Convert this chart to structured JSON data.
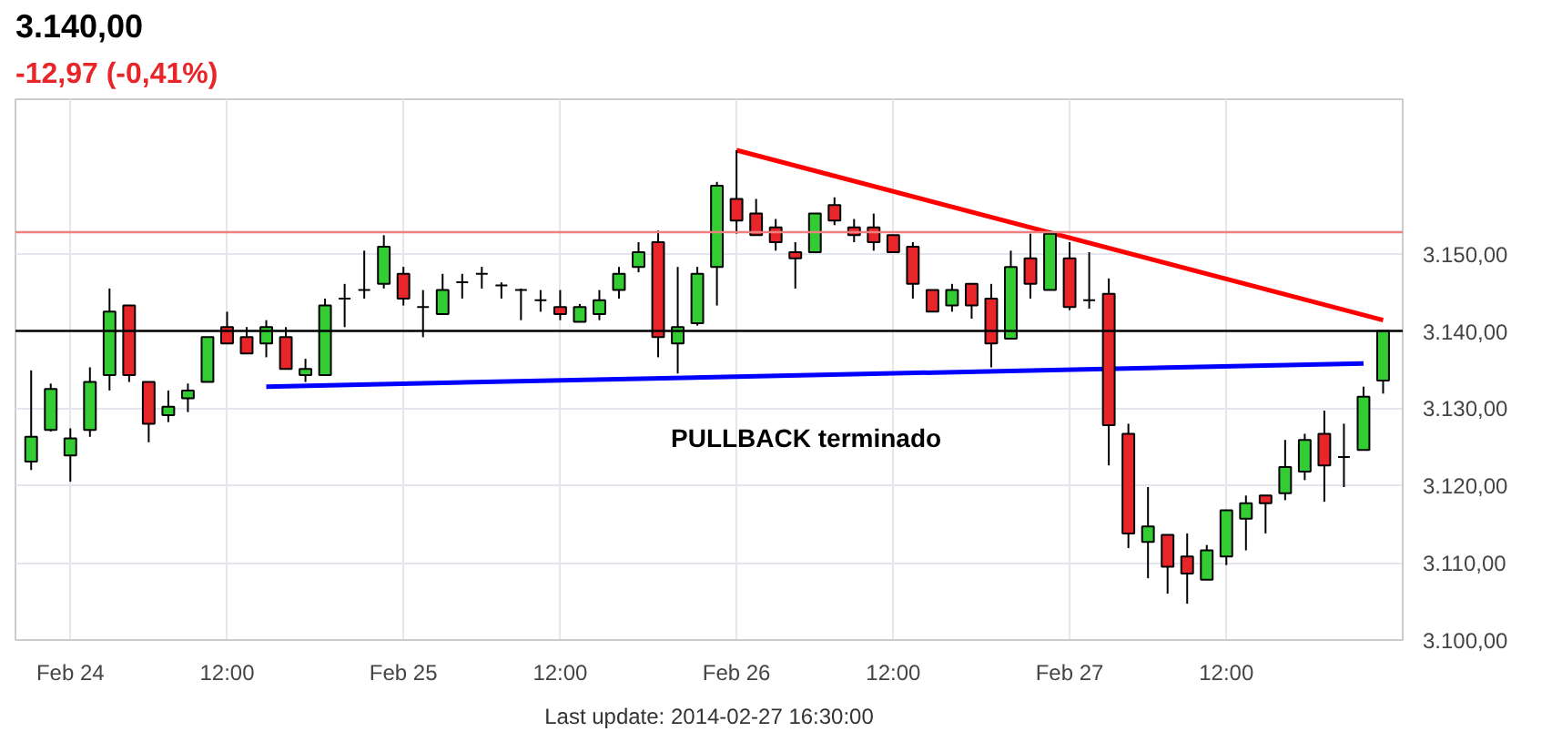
{
  "chart_data": {
    "type": "candlestick",
    "title": "3.140,00",
    "subtitle": "-12,97 (-0,41%)",
    "annotations": [
      "PULLBACK terminado",
      "Last update: 2014-02-27 16:30:00"
    ],
    "categories": [
      null,
      null,
      "Feb 24",
      null,
      null,
      null,
      null,
      null,
      null,
      null,
      "12:00",
      null,
      null,
      null,
      null,
      null,
      null,
      null,
      null,
      "Feb 25",
      null,
      null,
      null,
      null,
      null,
      null,
      null,
      "12:00",
      null,
      null,
      null,
      null,
      null,
      null,
      null,
      null,
      "Feb 26",
      null,
      null,
      null,
      null,
      null,
      null,
      null,
      "12:00",
      null,
      null,
      null,
      null,
      null,
      null,
      null,
      null,
      "Feb 27",
      null,
      null,
      null,
      null,
      null,
      null,
      null,
      "12:00",
      null,
      null,
      null,
      null,
      null,
      null,
      null,
      null
    ],
    "ohlc": [
      [
        3123.1,
        3134.9,
        3122.0,
        3126.3
      ],
      [
        3127.2,
        3133.2,
        3127.0,
        3132.5
      ],
      [
        3123.9,
        3127.4,
        3120.5,
        3126.1
      ],
      [
        3127.2,
        3135.3,
        3126.3,
        3133.4
      ],
      [
        3134.3,
        3145.5,
        3132.3,
        3142.5
      ],
      [
        3143.3,
        3143.3,
        3133.4,
        3134.3
      ],
      [
        3133.4,
        3133.4,
        3125.6,
        3128.0
      ],
      [
        3129.1,
        3132.3,
        3128.2,
        3130.2
      ],
      [
        3131.3,
        3133.2,
        3129.5,
        3132.3
      ],
      [
        3133.4,
        3139.2,
        3133.4,
        3139.2
      ],
      [
        3140.5,
        3142.5,
        3138.4,
        3138.4
      ],
      [
        3139.2,
        3140.5,
        3137.1,
        3137.1
      ],
      [
        3138.4,
        3141.4,
        3136.6,
        3140.5
      ],
      [
        3139.2,
        3140.5,
        3135.1,
        3135.1
      ],
      [
        3134.3,
        3136.4,
        3133.4,
        3135.1
      ],
      [
        3134.3,
        3144.2,
        3134.3,
        3143.3
      ],
      [
        3144.2,
        3146.1,
        3140.5,
        3144.2
      ],
      [
        3145.3,
        3150.4,
        3144.2,
        3145.3
      ],
      [
        3146.1,
        3152.4,
        3145.5,
        3150.9
      ],
      [
        3147.4,
        3148.3,
        3143.3,
        3144.2
      ],
      [
        3143.1,
        3145.3,
        3139.2,
        3143.1
      ],
      [
        3142.2,
        3147.4,
        3142.2,
        3145.3
      ],
      [
        3146.3,
        3147.4,
        3144.2,
        3146.3
      ],
      [
        3147.4,
        3148.3,
        3145.5,
        3147.4
      ],
      [
        3145.9,
        3146.3,
        3144.2,
        3145.9
      ],
      [
        3145.3,
        3145.5,
        3141.4,
        3145.3
      ],
      [
        3144.0,
        3145.3,
        3142.5,
        3144.0
      ],
      [
        3143.1,
        3145.3,
        3141.4,
        3142.2
      ],
      [
        3141.2,
        3143.5,
        3141.2,
        3143.1
      ],
      [
        3142.2,
        3145.3,
        3141.4,
        3144.0
      ],
      [
        3145.3,
        3148.3,
        3144.2,
        3147.4
      ],
      [
        3148.3,
        3151.5,
        3147.6,
        3150.2
      ],
      [
        3151.5,
        3153.0,
        3136.6,
        3139.2
      ],
      [
        3138.4,
        3148.3,
        3134.5,
        3140.5
      ],
      [
        3141.0,
        3148.3,
        3140.7,
        3147.4
      ],
      [
        3148.3,
        3159.3,
        3143.3,
        3158.8
      ],
      [
        3157.1,
        3163.4,
        3152.6,
        3154.3
      ],
      [
        3155.2,
        3157.1,
        3152.4,
        3152.4
      ],
      [
        3153.4,
        3154.5,
        3150.4,
        3151.5
      ],
      [
        3150.2,
        3151.5,
        3145.5,
        3149.4
      ],
      [
        3150.2,
        3155.2,
        3150.2,
        3155.2
      ],
      [
        3156.3,
        3157.3,
        3153.7,
        3154.3
      ],
      [
        3153.4,
        3154.5,
        3151.5,
        3152.4
      ],
      [
        3153.4,
        3155.2,
        3150.4,
        3151.5
      ],
      [
        3152.4,
        3152.4,
        3150.2,
        3150.2
      ],
      [
        3150.9,
        3151.5,
        3144.2,
        3146.1
      ],
      [
        3145.3,
        3145.3,
        3142.5,
        3142.5
      ],
      [
        3143.3,
        3146.1,
        3142.5,
        3145.3
      ],
      [
        3146.1,
        3146.1,
        3141.6,
        3143.3
      ],
      [
        3144.2,
        3146.1,
        3135.3,
        3138.4
      ],
      [
        3139.0,
        3150.4,
        3139.0,
        3148.3
      ],
      [
        3149.4,
        3152.6,
        3144.2,
        3146.1
      ],
      [
        3145.3,
        3153.0,
        3145.3,
        3152.6
      ],
      [
        3149.4,
        3151.5,
        3142.7,
        3143.1
      ],
      [
        3144.0,
        3150.2,
        3142.9,
        3144.0
      ],
      [
        3144.8,
        3146.8,
        3122.6,
        3127.8
      ],
      [
        3126.7,
        3128.0,
        3111.9,
        3113.8
      ],
      [
        3112.7,
        3119.8,
        3108.0,
        3114.7
      ],
      [
        3113.6,
        3113.6,
        3106.0,
        3109.5
      ],
      [
        3110.8,
        3113.8,
        3104.7,
        3108.6
      ],
      [
        3107.8,
        3112.3,
        3107.8,
        3111.6
      ],
      [
        3110.8,
        3116.8,
        3109.7,
        3116.8
      ],
      [
        3115.7,
        3118.7,
        3111.6,
        3117.7
      ],
      [
        3118.7,
        3118.7,
        3113.8,
        3117.7
      ],
      [
        3119.0,
        3125.9,
        3118.1,
        3122.4
      ],
      [
        3121.8,
        3126.7,
        3120.7,
        3125.9
      ],
      [
        3126.7,
        3129.7,
        3117.9,
        3122.6
      ],
      [
        3123.7,
        3128.0,
        3119.8,
        3123.7
      ],
      [
        3124.6,
        3132.8,
        3124.6,
        3131.5
      ],
      [
        3133.6,
        3140.0,
        3131.9,
        3140.0
      ]
    ],
    "colors": [
      "#33cc33",
      "#33cc33",
      "#33cc33",
      "#33cc33",
      "#33cc33",
      "#e8262a",
      "#e8262a",
      "#33cc33",
      "#33cc33",
      "#33cc33",
      "#e8262a",
      "#e8262a",
      "#33cc33",
      "#e8262a",
      "#33cc33",
      "#33cc33",
      "#000000",
      "#000000",
      "#33cc33",
      "#e8262a",
      "#000000",
      "#33cc33",
      "#000000",
      "#000000",
      "#000000",
      "#000000",
      "#000000",
      "#e8262a",
      "#33cc33",
      "#33cc33",
      "#33cc33",
      "#33cc33",
      "#e8262a",
      "#33cc33",
      "#33cc33",
      "#33cc33",
      "#e8262a",
      "#e8262a",
      "#e8262a",
      "#e8262a",
      "#33cc33",
      "#e8262a",
      "#e8262a",
      "#e8262a",
      "#e8262a",
      "#e8262a",
      "#e8262a",
      "#33cc33",
      "#e8262a",
      "#e8262a",
      "#33cc33",
      "#e8262a",
      "#33cc33",
      "#e8262a",
      "#000000",
      "#e8262a",
      "#e8262a",
      "#33cc33",
      "#e8262a",
      "#e8262a",
      "#33cc33",
      "#33cc33",
      "#33cc33",
      "#e8262a",
      "#33cc33",
      "#33cc33",
      "#e8262a",
      "#000000",
      "#33cc33",
      "#33cc33"
    ],
    "series": [
      {
        "type": "line",
        "color": "#ff0000",
        "values": [
          null,
          null,
          null,
          null,
          null,
          null,
          null,
          null,
          null,
          null,
          null,
          null,
          null,
          null,
          null,
          null,
          null,
          null,
          null,
          null,
          null,
          null,
          null,
          null,
          null,
          null,
          null,
          null,
          null,
          null,
          null,
          null,
          null,
          null,
          null,
          null,
          3163.4,
          null,
          null,
          null,
          null,
          null,
          null,
          null,
          null,
          null,
          null,
          null,
          null,
          null,
          null,
          null,
          null,
          null,
          null,
          null,
          null,
          null,
          null,
          null,
          null,
          null,
          null,
          null,
          null,
          null,
          null,
          null,
          null,
          3141.4
        ]
      },
      {
        "type": "line",
        "color": "#0000ff",
        "values": [
          null,
          null,
          null,
          null,
          null,
          null,
          null,
          null,
          null,
          null,
          null,
          null,
          3132.8,
          null,
          null,
          null,
          null,
          null,
          null,
          null,
          null,
          null,
          null,
          null,
          null,
          null,
          null,
          null,
          null,
          null,
          null,
          null,
          null,
          null,
          null,
          null,
          null,
          null,
          null,
          null,
          null,
          null,
          null,
          null,
          null,
          null,
          null,
          null,
          null,
          null,
          null,
          null,
          null,
          null,
          null,
          null,
          null,
          null,
          null,
          null,
          null,
          null,
          null,
          null,
          null,
          null,
          null,
          null,
          3135.8,
          null
        ]
      }
    ],
    "ref_lines": [
      {
        "axis": "y",
        "value": 3152.8,
        "color": "#f08080"
      },
      {
        "axis": "y",
        "value": 3140,
        "color": "#000000"
      }
    ],
    "ylim": [
      3100,
      3170
    ],
    "yticks": [
      {
        "value": 3100,
        "label": "3.100,00"
      },
      {
        "value": 3110,
        "label": "3.110,00"
      },
      {
        "value": 3120,
        "label": "3.120,00"
      },
      {
        "value": 3130,
        "label": "3.130,00"
      },
      {
        "value": 3140,
        "label": "3.140,00"
      },
      {
        "value": 3150,
        "label": "3.150,00"
      }
    ],
    "grid": true
  }
}
